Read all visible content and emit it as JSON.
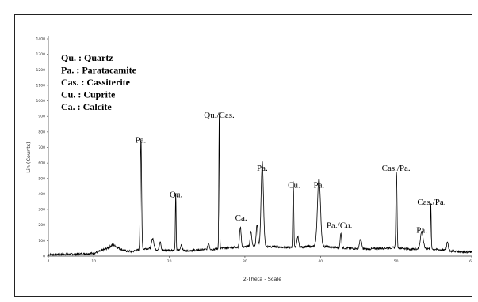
{
  "chart_data": {
    "type": "line",
    "xlabel": "2-Theta - Scale",
    "ylabel": "Lin (Counts)",
    "xlim": [
      4,
      60
    ],
    "ylim": [
      0,
      1400
    ],
    "x_ticks": [
      4,
      10,
      20,
      30,
      40,
      50,
      60
    ],
    "y_ticks": [
      0,
      100,
      200,
      300,
      400,
      500,
      600,
      700,
      800,
      900,
      1000,
      1100,
      1200,
      1300,
      1400
    ],
    "grid": false,
    "line_color": "#000000",
    "legend": [
      "Qu. : Quartz",
      "Pa.  : Paratacamite",
      "Cas. : Cassiterite",
      "Cu.  : Cuprite",
      "Ca.  : Calcite"
    ],
    "annotations": [
      {
        "text": "Pa.",
        "x": 16.2,
        "y": 730
      },
      {
        "text": "Qu.",
        "x": 20.9,
        "y": 380
      },
      {
        "text": "Qu./Cas.",
        "x": 26.6,
        "y": 890
      },
      {
        "text": "Ca.",
        "x": 29.5,
        "y": 230
      },
      {
        "text": "Pa.",
        "x": 32.3,
        "y": 550
      },
      {
        "text": "Cu.",
        "x": 36.5,
        "y": 440
      },
      {
        "text": "Pa.",
        "x": 39.8,
        "y": 440
      },
      {
        "text": "Pa./Cu.",
        "x": 42.5,
        "y": 180
      },
      {
        "text": "Cas./Pa.",
        "x": 50.0,
        "y": 550
      },
      {
        "text": "Pa.",
        "x": 53.4,
        "y": 150
      },
      {
        "text": "Cas./Pa.",
        "x": 54.7,
        "y": 330
      }
    ],
    "series": [
      {
        "baseline": [
          [
            4,
            10
          ],
          [
            6,
            12
          ],
          [
            8,
            14
          ],
          [
            10,
            18
          ],
          [
            11,
            35
          ],
          [
            12,
            55
          ],
          [
            12.5,
            75
          ],
          [
            13,
            60
          ],
          [
            14,
            35
          ],
          [
            15,
            30
          ],
          [
            16,
            40
          ],
          [
            17,
            50
          ],
          [
            18,
            45
          ],
          [
            19,
            35
          ],
          [
            20,
            40
          ],
          [
            22,
            35
          ],
          [
            24,
            40
          ],
          [
            26,
            45
          ],
          [
            28,
            55
          ],
          [
            30,
            60
          ],
          [
            32,
            65
          ],
          [
            34,
            60
          ],
          [
            36,
            55
          ],
          [
            38,
            60
          ],
          [
            40,
            65
          ],
          [
            42,
            55
          ],
          [
            44,
            50
          ],
          [
            46,
            45
          ],
          [
            48,
            50
          ],
          [
            50,
            55
          ],
          [
            52,
            45
          ],
          [
            54,
            50
          ],
          [
            56,
            40
          ],
          [
            58,
            30
          ],
          [
            60,
            25
          ]
        ],
        "peaks": [
          {
            "x": 16.25,
            "y": 720,
            "w": 0.12
          },
          {
            "x": 17.8,
            "y": 70,
            "w": 0.2
          },
          {
            "x": 18.8,
            "y": 60,
            "w": 0.15
          },
          {
            "x": 20.85,
            "y": 370,
            "w": 0.07
          },
          {
            "x": 21.6,
            "y": 40,
            "w": 0.15
          },
          {
            "x": 25.2,
            "y": 40,
            "w": 0.15
          },
          {
            "x": 26.6,
            "y": 870,
            "w": 0.07
          },
          {
            "x": 29.4,
            "y": 130,
            "w": 0.15
          },
          {
            "x": 30.8,
            "y": 100,
            "w": 0.15
          },
          {
            "x": 31.6,
            "y": 140,
            "w": 0.15
          },
          {
            "x": 32.3,
            "y": 540,
            "w": 0.22
          },
          {
            "x": 36.4,
            "y": 430,
            "w": 0.09
          },
          {
            "x": 37.0,
            "y": 70,
            "w": 0.15
          },
          {
            "x": 39.8,
            "y": 440,
            "w": 0.28
          },
          {
            "x": 42.7,
            "y": 100,
            "w": 0.12
          },
          {
            "x": 45.3,
            "y": 60,
            "w": 0.2
          },
          {
            "x": 50.05,
            "y": 500,
            "w": 0.1
          },
          {
            "x": 53.4,
            "y": 110,
            "w": 0.25
          },
          {
            "x": 54.6,
            "y": 290,
            "w": 0.07
          },
          {
            "x": 56.8,
            "y": 60,
            "w": 0.15
          }
        ]
      }
    ]
  }
}
